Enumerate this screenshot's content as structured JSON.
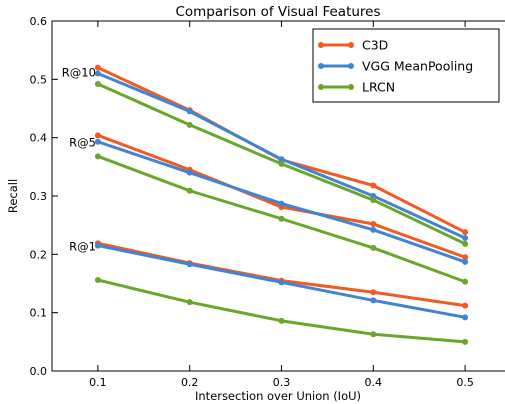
{
  "chart_data": {
    "type": "line",
    "title": "Comparison of Visual Features",
    "xlabel": "Intersection over Union (IoU)",
    "ylabel": "Recall",
    "x": [
      0.1,
      0.2,
      0.3,
      0.4,
      0.5
    ],
    "xlim": [
      0.05,
      0.55
    ],
    "ylim": [
      0.0,
      0.6
    ],
    "x_ticks": [
      "0.1",
      "0.2",
      "0.3",
      "0.4",
      "0.5"
    ],
    "y_ticks": [
      "0.0",
      "0.1",
      "0.2",
      "0.3",
      "0.4",
      "0.5",
      "0.6"
    ],
    "grid": false,
    "legend_position": "top-right",
    "legend": [
      {
        "name": "C3D",
        "color": "#f15a22"
      },
      {
        "name": "VGG MeanPooling",
        "color": "#3f85d4"
      },
      {
        "name": "LRCN",
        "color": "#6aa629"
      }
    ],
    "annotations": [
      {
        "text": "R@10",
        "x": 0.1,
        "y": 0.505
      },
      {
        "text": "R@5",
        "x": 0.1,
        "y": 0.385
      },
      {
        "text": "R@1",
        "x": 0.1,
        "y": 0.207
      }
    ],
    "series": [
      {
        "name": "C3D",
        "group": "R@10",
        "color": "#f15a22",
        "values": [
          0.52,
          0.447,
          0.362,
          0.318,
          0.238
        ]
      },
      {
        "name": "VGG MeanPooling",
        "group": "R@10",
        "color": "#3f85d4",
        "values": [
          0.51,
          0.445,
          0.363,
          0.3,
          0.228
        ]
      },
      {
        "name": "LRCN",
        "group": "R@10",
        "color": "#6aa629",
        "values": [
          0.492,
          0.422,
          0.355,
          0.293,
          0.218
        ]
      },
      {
        "name": "C3D",
        "group": "R@5",
        "color": "#f15a22",
        "values": [
          0.404,
          0.345,
          0.281,
          0.252,
          0.195
        ]
      },
      {
        "name": "VGG MeanPooling",
        "group": "R@5",
        "color": "#3f85d4",
        "values": [
          0.393,
          0.34,
          0.287,
          0.242,
          0.187
        ]
      },
      {
        "name": "LRCN",
        "group": "R@5",
        "color": "#6aa629",
        "values": [
          0.368,
          0.309,
          0.261,
          0.211,
          0.153
        ]
      },
      {
        "name": "C3D",
        "group": "R@1",
        "color": "#f15a22",
        "values": [
          0.219,
          0.185,
          0.155,
          0.135,
          0.112
        ]
      },
      {
        "name": "VGG MeanPooling",
        "group": "R@1",
        "color": "#3f85d4",
        "values": [
          0.215,
          0.183,
          0.152,
          0.121,
          0.092
        ]
      },
      {
        "name": "LRCN",
        "group": "R@1",
        "color": "#6aa629",
        "values": [
          0.156,
          0.118,
          0.086,
          0.063,
          0.05
        ]
      }
    ]
  }
}
